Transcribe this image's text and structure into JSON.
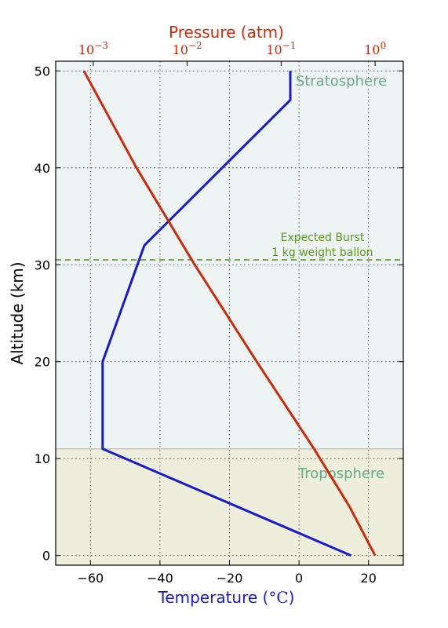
{
  "chart_data": {
    "type": "line",
    "ylabel": "Altitude (km)",
    "xlabel_prefix": "Temperature (",
    "xlabel_unit": "°C",
    "xlabel_suffix": ")",
    "x2label": "Pressure (atm)",
    "xlim": [
      -70,
      30
    ],
    "ylim": [
      -1,
      51
    ],
    "x_ticks": [
      -60,
      -40,
      -20,
      0,
      20
    ],
    "x_tick_labels": [
      "−60",
      "−40",
      "−20",
      "0",
      "20"
    ],
    "y_ticks": [
      0,
      10,
      20,
      30,
      40,
      50
    ],
    "y_tick_labels": [
      "0",
      "10",
      "20",
      "30",
      "40",
      "50"
    ],
    "pressure_axis": {
      "scale": "log",
      "log_range": [
        -3.4,
        0.3
      ],
      "ticks": [
        {
          "base": "10",
          "exp": "−3",
          "log": -3
        },
        {
          "base": "10",
          "exp": "−2",
          "log": -2
        },
        {
          "base": "10",
          "exp": "−1",
          "log": -1
        },
        {
          "base": "10",
          "exp": "0",
          "log": 0
        }
      ]
    },
    "grid": true,
    "grid_style": "dotted",
    "regions": [
      {
        "label": "Troposphere",
        "altitude_range": [
          -1,
          11
        ],
        "color": "#eeeedd",
        "label_color": "#6aa88a"
      },
      {
        "label": "Stratosphere",
        "altitude_range": [
          11,
          51
        ],
        "color": "#eef3f3",
        "label_color": "#6aa88a"
      }
    ],
    "boundary_altitude": 11,
    "burst": {
      "altitude": 30.5,
      "line1": "Expected Burst",
      "line2": "1 kg weight ballon",
      "color": "#5a9a1a"
    },
    "series": [
      {
        "axis": "temperature",
        "color": "#1a1acc",
        "points": [
          {
            "altitude": 0,
            "temperature": 15
          },
          {
            "altitude": 11,
            "temperature": -56.5
          },
          {
            "altitude": 20,
            "temperature": -56.5
          },
          {
            "altitude": 32,
            "temperature": -44.5
          },
          {
            "altitude": 47,
            "temperature": -2.5
          },
          {
            "altitude": 50,
            "temperature": -2.5
          }
        ]
      },
      {
        "axis": "pressure",
        "color": "#cc2a0a",
        "points": [
          {
            "altitude": 0,
            "log_pressure": 0.0
          },
          {
            "altitude": 5,
            "log_pressure": -0.27
          },
          {
            "altitude": 11,
            "log_pressure": -0.65
          },
          {
            "altitude": 20,
            "log_pressure": -1.26
          },
          {
            "altitude": 30,
            "log_pressure": -1.92
          },
          {
            "altitude": 40,
            "log_pressure": -2.54
          },
          {
            "altitude": 50,
            "log_pressure": -3.1
          }
        ]
      }
    ]
  }
}
